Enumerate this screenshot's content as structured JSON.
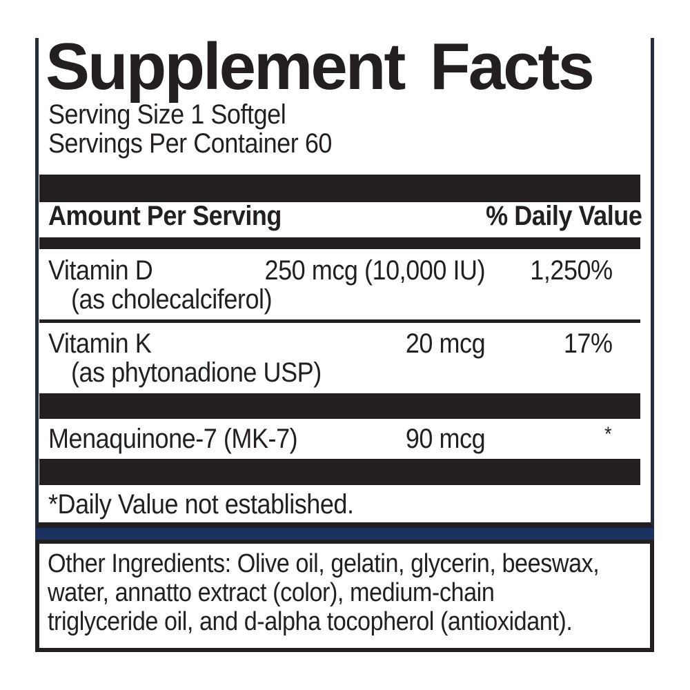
{
  "label": {
    "title": "Supplement Facts",
    "serving_size": "Serving Size 1 Softgel",
    "servings_per_container": "Servings Per Container 60",
    "columns": {
      "amount_header": "Amount Per Serving",
      "daily_value_header": "% Daily Value"
    },
    "rows": [
      {
        "name": "Vitamin D",
        "detail": "(as cholecalciferol)",
        "amount": "250 mcg (10,000 IU)",
        "dv": "1,250%"
      },
      {
        "name": "Vitamin K",
        "detail": "(as phytonadione USP)",
        "amount": "20 mcg",
        "dv": "17%"
      },
      {
        "name": "Menaquinone-7 (MK-7)",
        "detail": "",
        "amount": "90 mcg",
        "dv": "*"
      }
    ],
    "footnote": "*Daily Value not established.",
    "other_ingredients": {
      "lines": [
        "Other Ingredients: Olive oil, gelatin, glycerin, beeswax,",
        "water, annatto extract (color), medium-chain",
        "triglyceride oil, and d-alpha tocopherol (antioxidant)."
      ]
    },
    "colors": {
      "ink": "#231f20",
      "navy_divider": "#1b3160"
    }
  }
}
